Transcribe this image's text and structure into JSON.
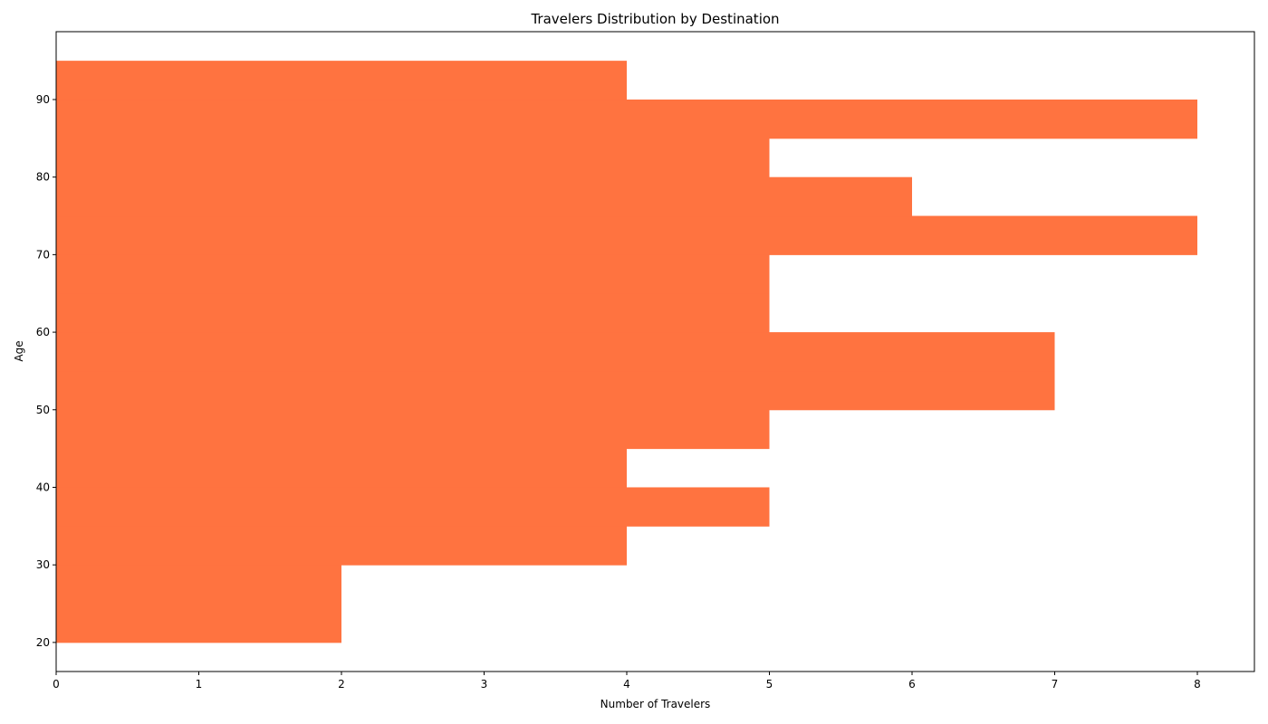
{
  "chart_data": {
    "type": "bar",
    "orientation": "horizontal",
    "title": "Travelers Distribution by Destination",
    "xlabel": "Number of Travelers",
    "ylabel": "Age",
    "xlim": [
      0,
      8.4
    ],
    "ylim": [
      16.25,
      98.75
    ],
    "x_ticks": [
      0,
      1,
      2,
      3,
      4,
      5,
      6,
      7,
      8
    ],
    "y_ticks": [
      20,
      30,
      40,
      50,
      60,
      70,
      80,
      90
    ],
    "grid": false,
    "bar_color": "#ff7340",
    "bins": [
      {
        "age_from": 20,
        "age_to": 25,
        "count": 2
      },
      {
        "age_from": 25,
        "age_to": 30,
        "count": 2
      },
      {
        "age_from": 30,
        "age_to": 35,
        "count": 4
      },
      {
        "age_from": 35,
        "age_to": 40,
        "count": 5
      },
      {
        "age_from": 40,
        "age_to": 45,
        "count": 4
      },
      {
        "age_from": 45,
        "age_to": 50,
        "count": 5
      },
      {
        "age_from": 50,
        "age_to": 55,
        "count": 7
      },
      {
        "age_from": 55,
        "age_to": 60,
        "count": 7
      },
      {
        "age_from": 60,
        "age_to": 65,
        "count": 5
      },
      {
        "age_from": 65,
        "age_to": 70,
        "count": 5
      },
      {
        "age_from": 70,
        "age_to": 75,
        "count": 8
      },
      {
        "age_from": 75,
        "age_to": 80,
        "count": 6
      },
      {
        "age_from": 80,
        "age_to": 85,
        "count": 5
      },
      {
        "age_from": 85,
        "age_to": 90,
        "count": 8
      },
      {
        "age_from": 90,
        "age_to": 95,
        "count": 4
      }
    ]
  }
}
